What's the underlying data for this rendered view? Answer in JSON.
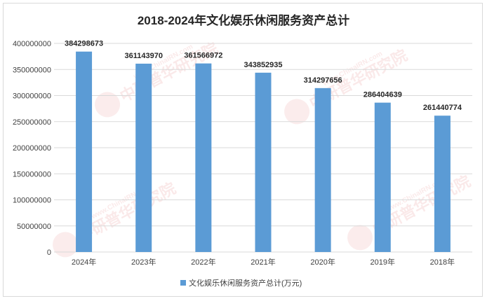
{
  "chart_data": {
    "type": "bar",
    "title": "2018-2024年文化娱乐休闲服务资产总计",
    "categories": [
      "2024年",
      "2023年",
      "2022年",
      "2021年",
      "2020年",
      "2019年",
      "2018年"
    ],
    "series": [
      {
        "name": "文化娱乐休闲服务资产总计(万元)",
        "values": [
          384298673,
          361143970,
          361566972,
          343852935,
          314297656,
          286404639,
          261440774
        ],
        "color": "#5b9bd5"
      }
    ],
    "data_labels": [
      "384298673",
      "361143970",
      "361566972",
      "343852935",
      "314297656",
      "286404639",
      "261440774"
    ],
    "ylim": [
      0,
      400000000
    ],
    "yticks": [
      0,
      50000000,
      100000000,
      150000000,
      200000000,
      250000000,
      300000000,
      350000000,
      400000000
    ],
    "ytick_labels": [
      "0",
      "50000000",
      "100000000",
      "150000000",
      "200000000",
      "250000000",
      "300000000",
      "350000000",
      "400000000"
    ],
    "grid": true,
    "legend_position": "bottom"
  },
  "watermark": {
    "text_cn": "中研普华研究院",
    "text_en": "www.ChinaIRN.com",
    "logo": "CIRN"
  }
}
